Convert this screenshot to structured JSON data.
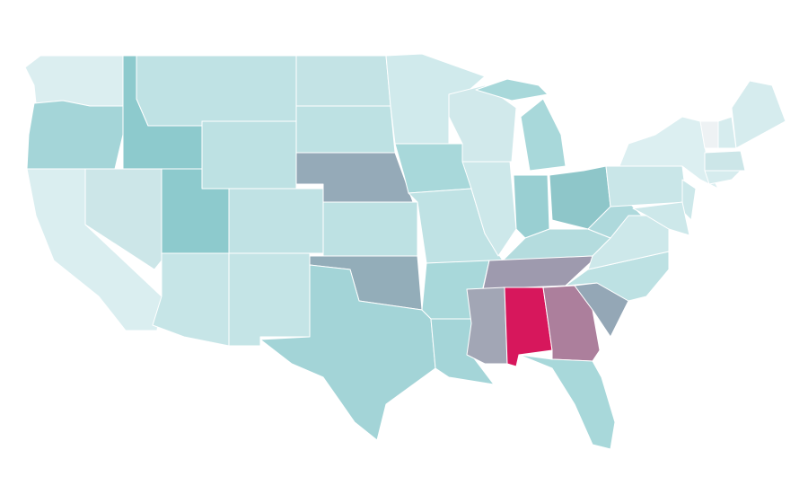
{
  "map": {
    "background": "#ffffff",
    "border_color": "#ffffff",
    "regions": [
      {
        "color": "#dbeef0"
      },
      {
        "color": "#a4d5d8"
      },
      {
        "color": "#daeef0"
      },
      {
        "color": "#cce6e8"
      },
      {
        "color": "#8dcacd"
      },
      {
        "color": "#bfe2e4"
      },
      {
        "color": "#bde1e3"
      },
      {
        "color": "#8dcacd"
      },
      {
        "color": "#c6e5e7"
      },
      {
        "color": "#c0e2e4"
      },
      {
        "color": "#c4e4e6"
      },
      {
        "color": "#c3e3e5"
      },
      {
        "color": "#bde1e3"
      },
      {
        "color": "#95aab8"
      },
      {
        "color": "#bde1e3"
      },
      {
        "color": "#93adb9"
      },
      {
        "color": "#a3d4d7"
      },
      {
        "color": "#d0eaec"
      },
      {
        "color": "#a8d8da"
      },
      {
        "color": "#bfe2e4"
      },
      {
        "color": "#a8d8da"
      },
      {
        "color": "#a4d5d8"
      },
      {
        "color": "#d1e9eb"
      },
      {
        "color": "#cde8ea"
      },
      {
        "color": "#a8d8da"
      },
      {
        "color": "#a8d8da"
      },
      {
        "color": "#99cfd2"
      },
      {
        "color": "#8ec6c9"
      },
      {
        "color": "#b4dcde"
      },
      {
        "color": "#9e9aae"
      },
      {
        "color": "#a2a6b5"
      },
      {
        "color": "#d7175c"
      },
      {
        "color": "#ac7f9c"
      },
      {
        "color": "#a8d8da"
      },
      {
        "color": "#94a7b6"
      },
      {
        "color": "#bde1e3"
      },
      {
        "color": "#cde8ea"
      },
      {
        "color": "#aed9dc"
      },
      {
        "color": "#c9e6e8"
      },
      {
        "color": "#dceff1"
      },
      {
        "color": "#cde8ea"
      },
      {
        "color": "#cde8ea"
      },
      {
        "color": "#eef2f4"
      },
      {
        "color": "#d6ecee"
      },
      {
        "color": "#d6ecee"
      },
      {
        "color": "#cce6e8"
      },
      {
        "color": "#d6ecee"
      }
    ]
  }
}
